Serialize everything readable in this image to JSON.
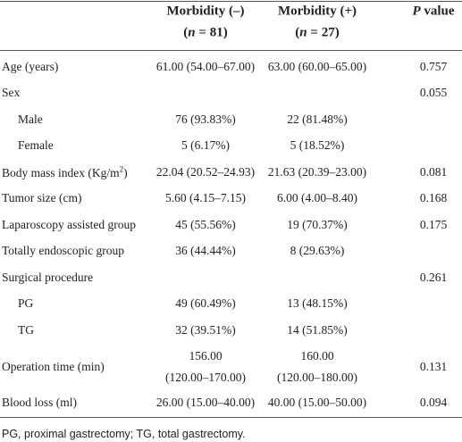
{
  "header": {
    "columns": [
      {
        "title": "Morbidity (–)",
        "subtitle": [
          "(",
          "n",
          " = 81)"
        ]
      },
      {
        "title": "Morbidity (+)",
        "subtitle": [
          "(",
          "n",
          " = 27)"
        ]
      }
    ],
    "p_value": [
      "P",
      " value"
    ]
  },
  "table": {
    "rows": [
      {
        "label": [
          "Age (years)"
        ],
        "indent": false,
        "cells": [
          "61.00 (54.00–67.00)",
          "63.00 (60.00–65.00)",
          "0.757"
        ]
      },
      {
        "label": [
          "Sex"
        ],
        "indent": false,
        "cells": [
          null,
          null,
          "0.055"
        ]
      },
      {
        "label": [
          "Male"
        ],
        "indent": true,
        "cells": [
          "76 (93.83%)",
          "22 (81.48%)",
          null
        ]
      },
      {
        "label": [
          "Female"
        ],
        "indent": true,
        "cells": [
          "5 (6.17%)",
          "5 (18.52%)",
          null
        ]
      },
      {
        "label": [
          "Body mass index (Kg/m",
          "2",
          ")"
        ],
        "indent": false,
        "cells": [
          "22.04 (20.52–24.93)",
          "21.63 (20.39–23.00)",
          "0.081"
        ]
      },
      {
        "label": [
          "Tumor size (cm)"
        ],
        "indent": false,
        "cells": [
          "5.60 (4.15–7.15)",
          "6.00 (4.00–8.40)",
          "0.168"
        ]
      },
      {
        "label": [
          "Laparoscopy assisted group"
        ],
        "indent": false,
        "cells": [
          "45 (55.56%)",
          "19 (70.37%)",
          "0.175"
        ]
      },
      {
        "label": [
          "Totally endoscopic group"
        ],
        "indent": false,
        "cells": [
          "36 (44.44%)",
          "8 (29.63%)",
          null
        ]
      },
      {
        "label": [
          "Surgical procedure"
        ],
        "indent": false,
        "cells": [
          null,
          null,
          "0.261"
        ]
      },
      {
        "label": [
          "PG"
        ],
        "indent": true,
        "cells": [
          "49 (60.49%)",
          "13 (48.15%)",
          null
        ]
      },
      {
        "label": [
          "TG"
        ],
        "indent": true,
        "cells": [
          "32 (39.51%)",
          "14 (51.85%)",
          null
        ]
      },
      {
        "label": [
          "Operation time (min)"
        ],
        "indent": false,
        "cells": [
          [
            "156.00",
            "(120.00–170.00)"
          ],
          [
            "160.00",
            "(120.00–180.00)"
          ],
          "0.131"
        ]
      },
      {
        "label": [
          "Blood loss (ml)"
        ],
        "indent": false,
        "cells": [
          "26.00 (15.00–40.00)",
          "40.00 (15.00–50.00)",
          "0.094"
        ]
      }
    ]
  },
  "footnote": "PG, proximal gastrectomy; TG, total gastrectomy."
}
